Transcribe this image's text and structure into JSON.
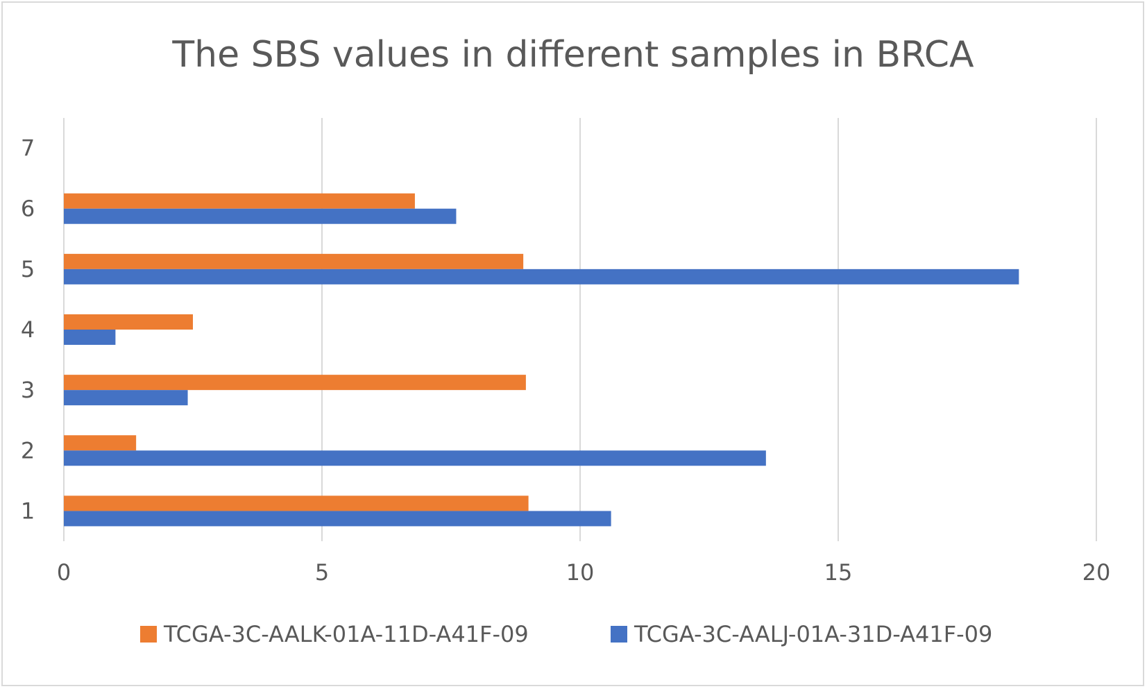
{
  "chart_data": {
    "type": "bar",
    "orientation": "horizontal",
    "title": "The SBS values in different samples in BRCA",
    "xlabel": "",
    "ylabel": "",
    "categories": [
      "1",
      "2",
      "3",
      "4",
      "5",
      "6",
      "7"
    ],
    "xlim": [
      0,
      20
    ],
    "x_ticks": [
      "0",
      "5",
      "10",
      "15",
      "20"
    ],
    "grid": "vertical",
    "legend_position": "bottom",
    "series": [
      {
        "name": "TCGA-3C-AALK-01A-11D-A41F-09",
        "color": "#ED7D31",
        "values": [
          9.0,
          1.4,
          8.95,
          2.5,
          8.9,
          6.8,
          null
        ]
      },
      {
        "name": "TCGA-3C-AALJ-01A-31D-A41F-09",
        "color": "#4472C4",
        "values": [
          10.6,
          13.6,
          2.4,
          1.0,
          18.5,
          7.6,
          null
        ]
      }
    ]
  }
}
